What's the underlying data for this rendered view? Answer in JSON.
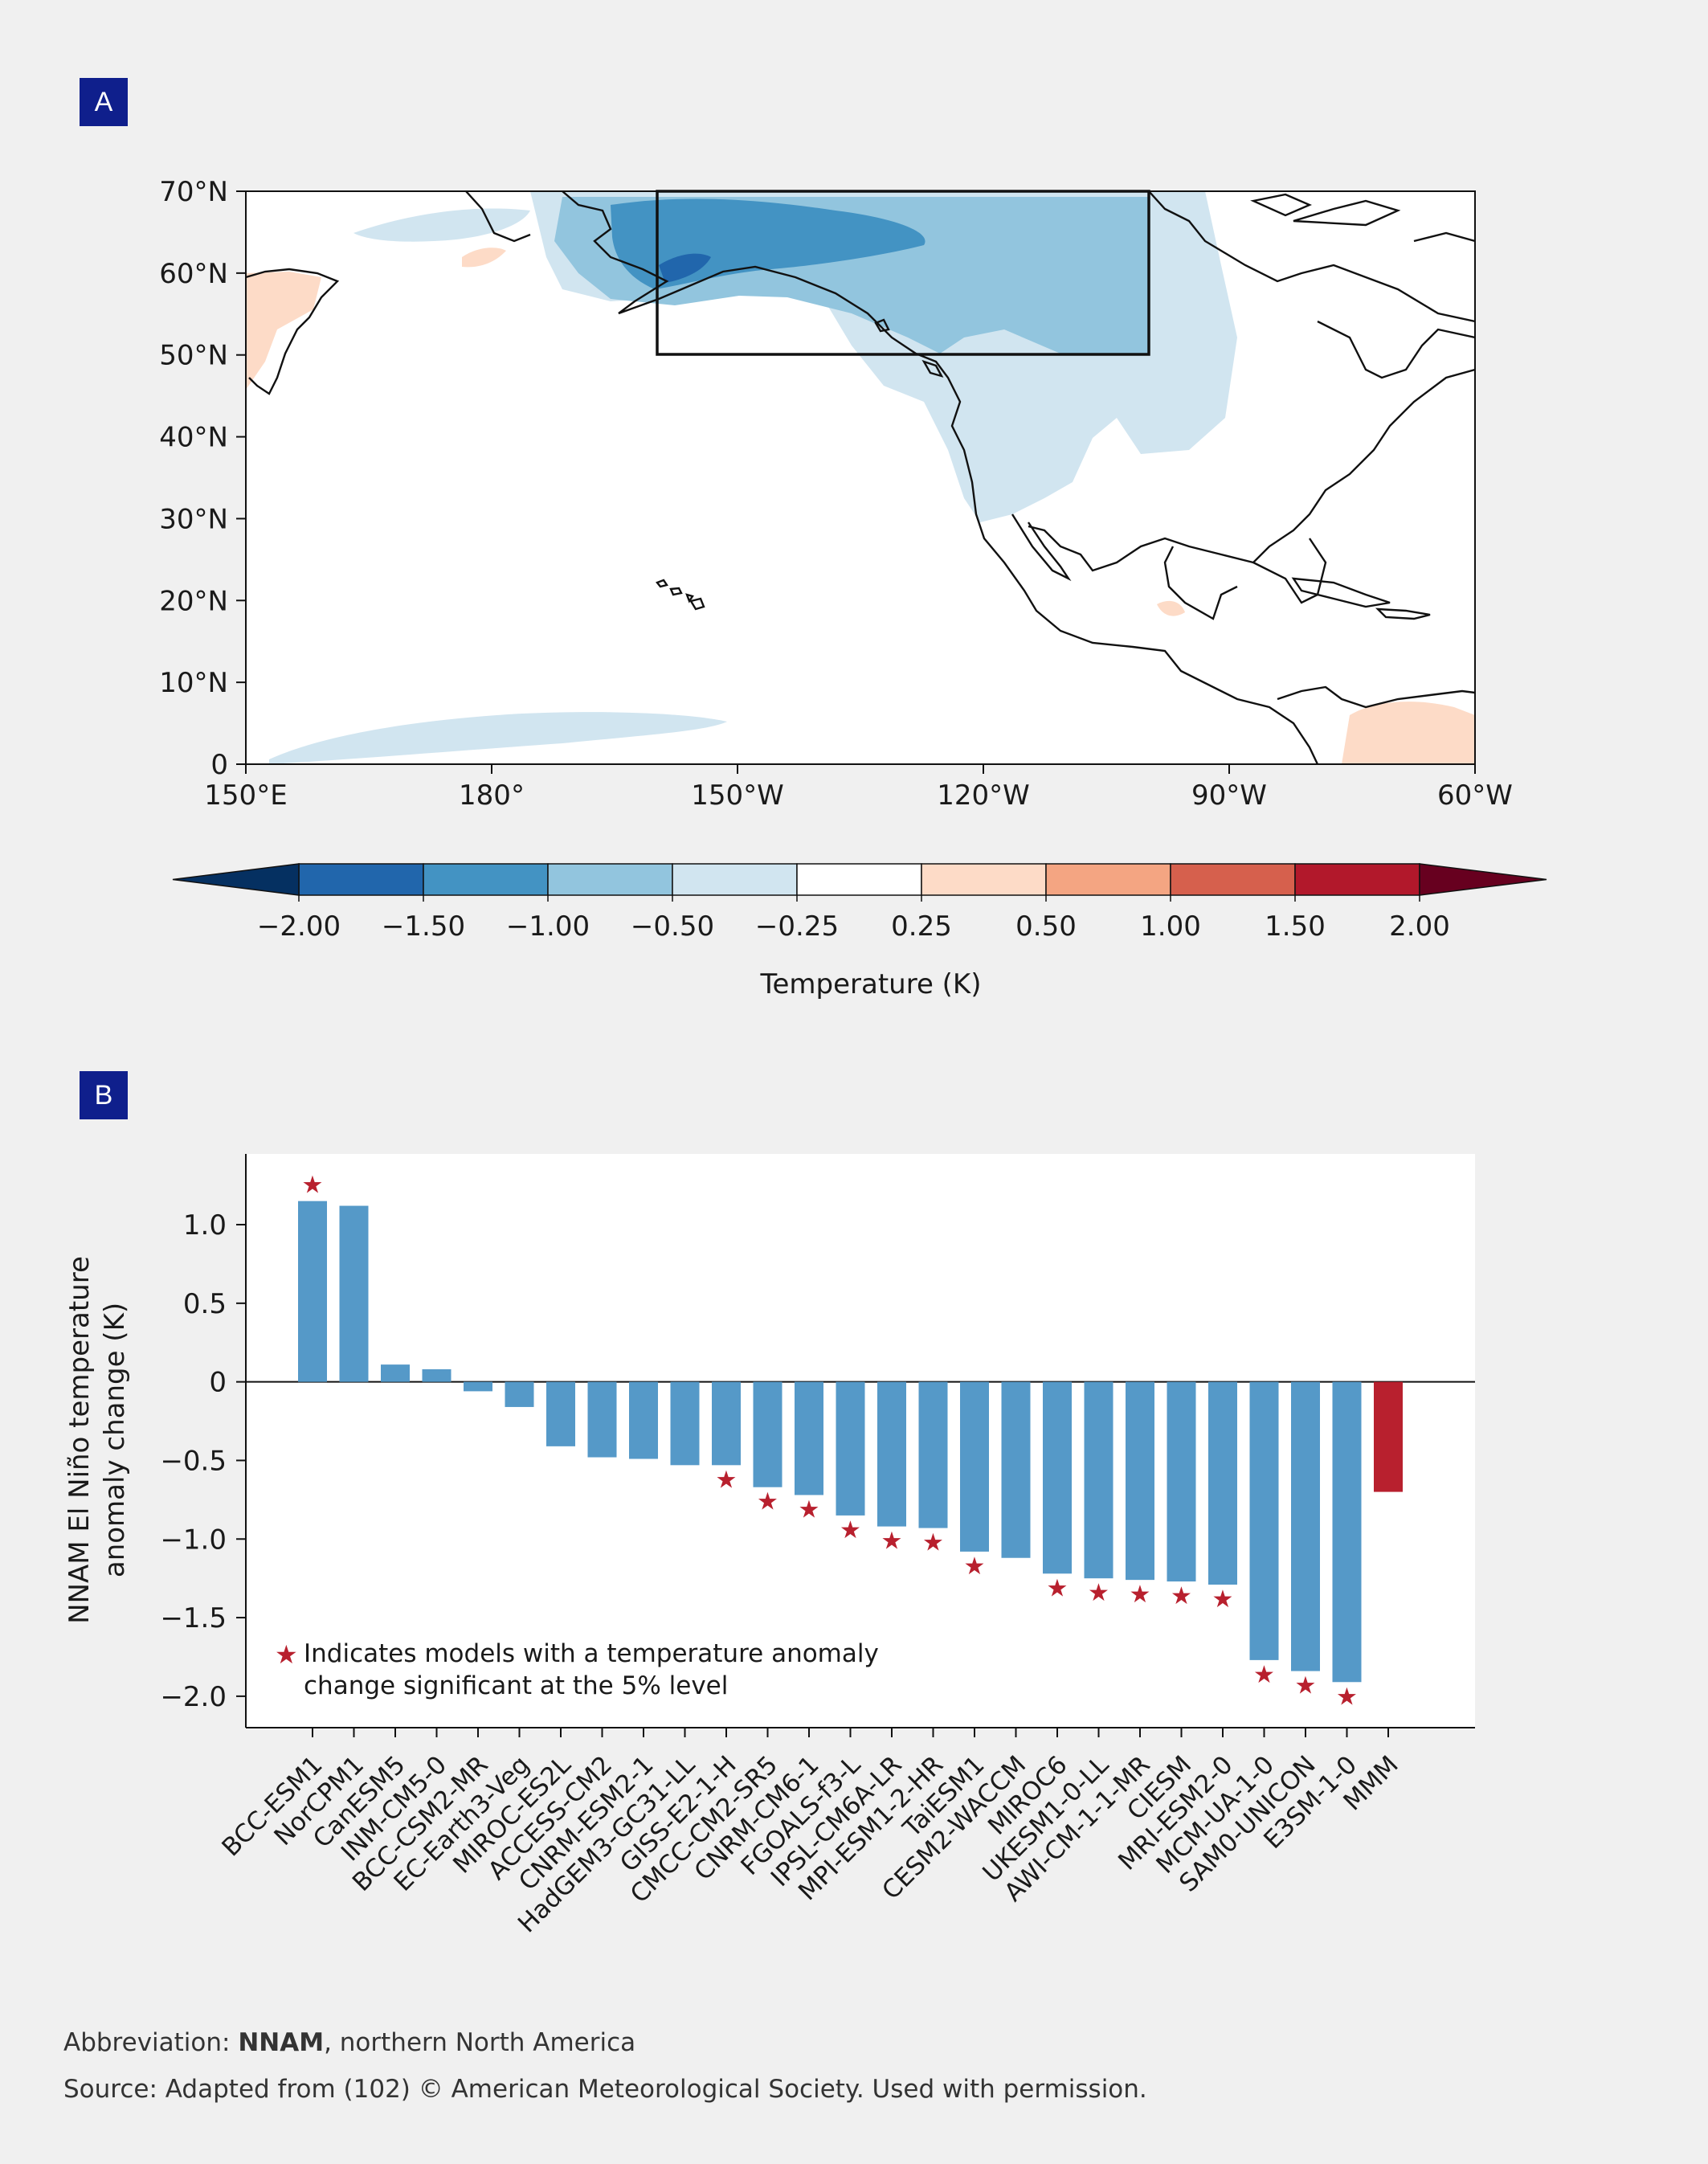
{
  "panels": {
    "a_label": "A",
    "b_label": "B"
  },
  "map": {
    "lat_labels": [
      "70°N",
      "60°N",
      "50°N",
      "40°N",
      "30°N",
      "20°N",
      "10°N",
      "0"
    ],
    "lon_labels": [
      "150°E",
      "180°",
      "150°W",
      "120°W",
      "90°W",
      "60°W"
    ],
    "box_region": "NNAM (50°N–70°N, 160°W–100°W)"
  },
  "colorbar": {
    "label": "Temperature (K)",
    "ticks": [
      "−2.00",
      "−1.50",
      "−1.00",
      "−0.50",
      "−0.25",
      "0.25",
      "0.50",
      "1.00",
      "1.50",
      "2.00"
    ],
    "colors": [
      "#2166ac",
      "#4393c3",
      "#92c5de",
      "#d1e5f0",
      "#ffffff",
      "#fddbc7",
      "#f4a582",
      "#d6604d",
      "#b2182b"
    ],
    "under_color": "#053061",
    "over_color": "#67001f"
  },
  "chart_data": {
    "type": "bar",
    "ylabel_line1": "NNAM El Niño temperature",
    "ylabel_line2": "anomaly change (K)",
    "ylim": [
      -2.2,
      1.45
    ],
    "yticks": [
      1.0,
      0.5,
      0,
      -0.5,
      -1.0,
      -1.5,
      -2.0
    ],
    "ytick_labels": [
      "1.0",
      "0.5",
      "0",
      "−0.5",
      "−1.0",
      "−1.5",
      "−2.0"
    ],
    "categories": [
      "BCC-ESM1",
      "NorCPM1",
      "CanESM5",
      "INM-CM5-0",
      "BCC-CSM2-MR",
      "EC-Earth3-Veg",
      "MIROC-ES2L",
      "ACCESS-CM2",
      "CNRM-ESM2-1",
      "HadGEM3-GC31-LL",
      "GISS-E2-1-H",
      "CMCC-CM2-SR5",
      "CNRM-CM6-1",
      "FGOALS-f3-L",
      "IPSL-CM6A-LR",
      "MPI-ESM1-2-HR",
      "TaiESM1",
      "CESM2-WACCM",
      "MIROC6",
      "UKESM1-0-LL",
      "AWI-CM-1-1-MR",
      "CIESM",
      "MRI-ESM2-0",
      "MCM-UA-1-0",
      "SAM0-UNICON",
      "E3SM-1-0",
      "MMM"
    ],
    "values": [
      1.15,
      1.12,
      0.11,
      0.08,
      -0.06,
      -0.16,
      -0.41,
      -0.48,
      -0.49,
      -0.53,
      -0.53,
      -0.67,
      -0.72,
      -0.85,
      -0.92,
      -0.93,
      -1.08,
      -1.12,
      -1.22,
      -1.25,
      -1.26,
      -1.27,
      -1.29,
      -1.77,
      -1.84,
      -1.91,
      -0.7
    ],
    "significant": [
      true,
      false,
      false,
      false,
      false,
      false,
      false,
      false,
      false,
      false,
      true,
      true,
      true,
      true,
      true,
      true,
      true,
      false,
      true,
      true,
      true,
      true,
      true,
      true,
      true,
      true,
      false
    ],
    "bar_color": "#5599c8",
    "mmm_color": "#b8202e",
    "star_color": "#b8202e",
    "legend_line1": "Indicates models with a temperature anomaly",
    "legend_line2": "change significant at the 5% level"
  },
  "footer": {
    "abbrev_prefix": "Abbreviation: ",
    "abbrev_term": "NNAM",
    "abbrev_rest": ", northern North America",
    "source": "Source: Adapted from (102) © American Meteorological Society. Used with permission."
  }
}
